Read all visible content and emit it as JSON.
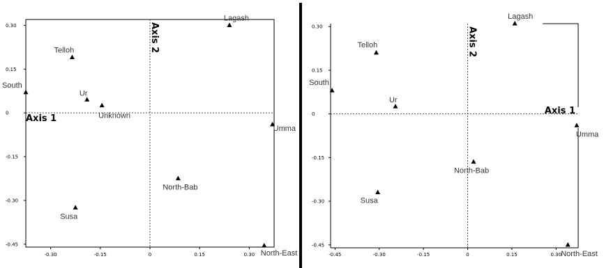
{
  "chart_data": [
    {
      "type": "scatter",
      "title": "",
      "xlabel": "Axis 1",
      "ylabel": "Axis 2",
      "xlim": [
        -0.375,
        0.375
      ],
      "ylim": [
        -0.46,
        0.32
      ],
      "x_ticks": [
        -0.3,
        -0.15,
        0,
        0.15,
        0.3
      ],
      "x_tick_labels": [
        "-0.30",
        "-0.15",
        "0",
        "0.15",
        "0.30"
      ],
      "y_ticks": [
        0.3,
        0.15,
        0,
        -0.15,
        -0.3,
        -0.45
      ],
      "y_tick_labels": [
        "0.30",
        "0.15",
        "0",
        "-0.15",
        "-0.30",
        "-0.45"
      ],
      "grid": false,
      "points": [
        {
          "label": "Lagash",
          "x": 0.24,
          "y": 0.3
        },
        {
          "label": "Telloh",
          "x": -0.235,
          "y": 0.19
        },
        {
          "label": "South",
          "x": -0.375,
          "y": 0.07
        },
        {
          "label": "Ur",
          "x": -0.19,
          "y": 0.045
        },
        {
          "label": "Unknown",
          "x": -0.145,
          "y": 0.025
        },
        {
          "label": "Umma",
          "x": 0.37,
          "y": -0.04
        },
        {
          "label": "North-Bab",
          "x": 0.085,
          "y": -0.225
        },
        {
          "label": "Susa",
          "x": -0.225,
          "y": -0.325
        },
        {
          "label": "North-East",
          "x": 0.345,
          "y": -0.455
        }
      ]
    },
    {
      "type": "scatter",
      "title": "",
      "xlabel": "Axis 1",
      "ylabel": "Axis 2",
      "xlim": [
        -0.465,
        0.375
      ],
      "ylim": [
        -0.46,
        0.31
      ],
      "x_ticks": [
        -0.45,
        -0.3,
        -0.15,
        0,
        0.15,
        0.3
      ],
      "x_tick_labels": [
        "-0.45",
        "-0.30",
        "-0.15",
        "0",
        "0.15",
        "0.30"
      ],
      "y_ticks": [
        0.3,
        0.15,
        0,
        -0.15,
        -0.3,
        -0.45
      ],
      "y_tick_labels": [
        "0.30",
        "0.15",
        "0",
        "-0.15",
        "-0.30",
        "-0.45"
      ],
      "grid": false,
      "points": [
        {
          "label": "Lagash",
          "x": 0.16,
          "y": 0.31
        },
        {
          "label": "Telloh",
          "x": -0.31,
          "y": 0.21
        },
        {
          "label": "South",
          "x": -0.46,
          "y": 0.08
        },
        {
          "label": "Ur",
          "x": -0.245,
          "y": 0.025
        },
        {
          "label": "Umma",
          "x": 0.37,
          "y": -0.04
        },
        {
          "label": "North-Bab",
          "x": 0.02,
          "y": -0.165
        },
        {
          "label": "Susa",
          "x": -0.305,
          "y": -0.27
        },
        {
          "label": "North-East",
          "x": 0.34,
          "y": -0.45
        }
      ]
    }
  ]
}
